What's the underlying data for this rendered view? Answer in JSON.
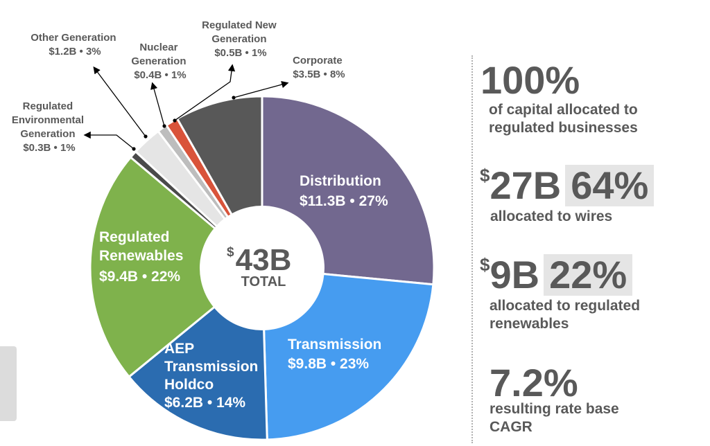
{
  "chart_data": {
    "type": "pie",
    "donut": true,
    "total_label": "43B",
    "total_currency": "$",
    "total_sublabel": "TOTAL",
    "slices": [
      {
        "name": "Distribution",
        "value": 11.3,
        "label": "$11.3B • 27%",
        "color": "#72688f"
      },
      {
        "name": "Transmission",
        "value": 9.8,
        "label": "$9.8B • 23%",
        "color": "#469cf0"
      },
      {
        "name": "AEP Transmission Holdco",
        "value": 6.2,
        "label": "$6.2B • 14%",
        "color": "#2b6cb0"
      },
      {
        "name": "Regulated Renewables",
        "value": 9.4,
        "label": "$9.4B • 22%",
        "color": "#7fb24c"
      },
      {
        "name": "Regulated Environmental Generation",
        "value": 0.3,
        "label": "$0.3B • 1%",
        "color": "#4a4a4a"
      },
      {
        "name": "Other Generation",
        "value": 1.2,
        "label": "$1.2B • 3%",
        "color": "#e5e5e5"
      },
      {
        "name": "Nuclear Generation",
        "value": 0.4,
        "label": "$0.4B • 1%",
        "color": "#bdbdbd"
      },
      {
        "name": "Regulated New Generation",
        "value": 0.5,
        "label": "$0.5B • 1%",
        "color": "#d9533a"
      },
      {
        "name": "Corporate",
        "value": 3.5,
        "label": "$3.5B • 8%",
        "color": "#585858"
      }
    ]
  },
  "inside_labels": {
    "distribution": {
      "line1": "Distribution",
      "line2": "$11.3B • 27%"
    },
    "transmission": {
      "line1": "Transmission",
      "line2": "$9.8B • 23%"
    },
    "holdco": {
      "line1": "AEP",
      "line2": "Transmission",
      "line3": "Holdco",
      "line4": "$6.2B • 14%"
    },
    "renewables": {
      "line1": "Regulated",
      "line2": "Renewables",
      "line3": "$9.4B • 22%"
    }
  },
  "callouts": {
    "environmental": {
      "line1": "Regulated",
      "line2": "Environmental",
      "line3": "Generation",
      "line4": "$0.3B • 1%"
    },
    "other": {
      "line1": "Other Generation",
      "line2": "$1.2B • 3%"
    },
    "nuclear": {
      "line1": "Nuclear",
      "line2": "Generation",
      "line3": "$0.4B • 1%"
    },
    "new_gen": {
      "line1": "Regulated New",
      "line2": "Generation",
      "line3": "$0.5B • 1%"
    },
    "corporate": {
      "line1": "Corporate",
      "line2": "$3.5B • 8%"
    }
  },
  "stats": {
    "s1": {
      "value": "100%",
      "caption": "of capital allocated to regulated businesses"
    },
    "s2": {
      "currency": "$",
      "value": "27B",
      "percent": "64%",
      "caption": "allocated to wires"
    },
    "s3": {
      "currency": "$",
      "value": "9B",
      "percent": "22%",
      "caption": "allocated to regulated renewables"
    },
    "s4": {
      "value": "7.2%",
      "caption": "resulting rate base CAGR"
    }
  }
}
